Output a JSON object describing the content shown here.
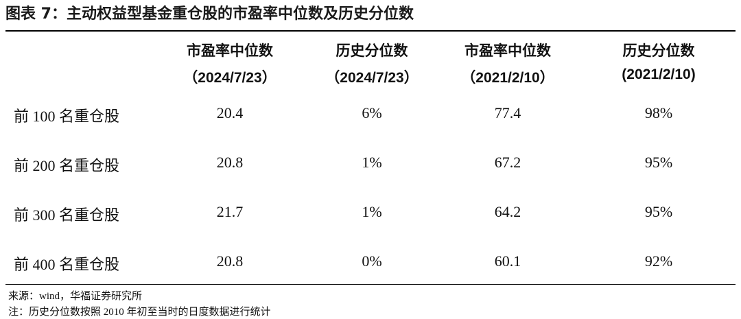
{
  "title": "图表 7：主动权益型基金重仓股的市盈率中位数及历史分位数",
  "table": {
    "columns": [
      {
        "name": "市盈率中位数",
        "date": "（2024/7/23）"
      },
      {
        "name": "历史分位数",
        "date": "（2024/7/23）"
      },
      {
        "name": "市盈率中位数",
        "date": "（2021/2/10）"
      },
      {
        "name": "历史分位数",
        "date": "(2021/2/10)"
      }
    ],
    "rows": [
      [
        "前 100 名重仓股",
        "20.4",
        "6%",
        "77.4",
        "98%"
      ],
      [
        "前 200 名重仓股",
        "20.8",
        "1%",
        "67.2",
        "95%"
      ],
      [
        "前 300 名重仓股",
        "21.7",
        "1%",
        "64.2",
        "95%"
      ],
      [
        "前 400 名重仓股",
        "20.8",
        "0%",
        "60.1",
        "92%"
      ]
    ]
  },
  "source": "来源：wind，华福证券研究所",
  "note": "注：历史分位数按照 2010 年初至当时的日度数据进行统计"
}
